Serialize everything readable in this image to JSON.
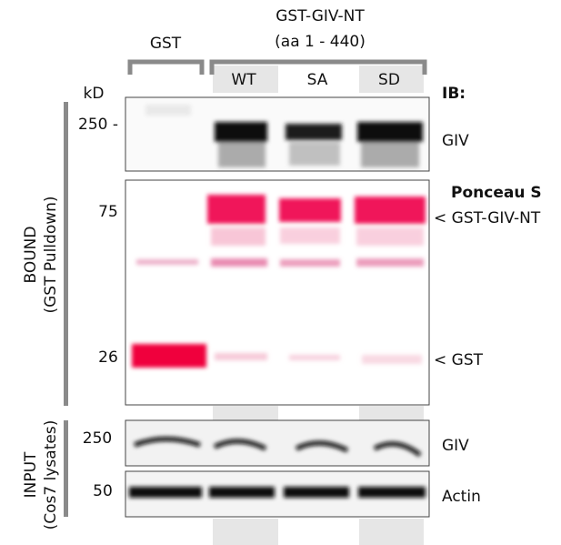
{
  "header": {
    "gst": "GST",
    "construct": "GST-GIV-NT",
    "construct_range": "(aa 1 - 440)",
    "lanes": [
      "WT",
      "SA",
      "SD"
    ],
    "kd": "kD",
    "ib": "IB:"
  },
  "bound": {
    "label": "BOUND",
    "sublabel": "(GST Pulldown)",
    "panels": [
      {
        "markers": [
          "250 -"
        ],
        "labels": [
          "GIV"
        ]
      },
      {
        "title": "Ponceau S",
        "markers": [
          "75",
          "26"
        ],
        "labels": [
          "< GST-GIV-NT",
          "< GST"
        ]
      }
    ]
  },
  "input": {
    "label": "INPUT",
    "sublabel": "(Cos7 lysates)",
    "panels": [
      {
        "markers": [
          "250"
        ],
        "labels": [
          "GIV"
        ]
      },
      {
        "markers": [
          "50"
        ],
        "labels": [
          "Actin"
        ]
      }
    ]
  }
}
